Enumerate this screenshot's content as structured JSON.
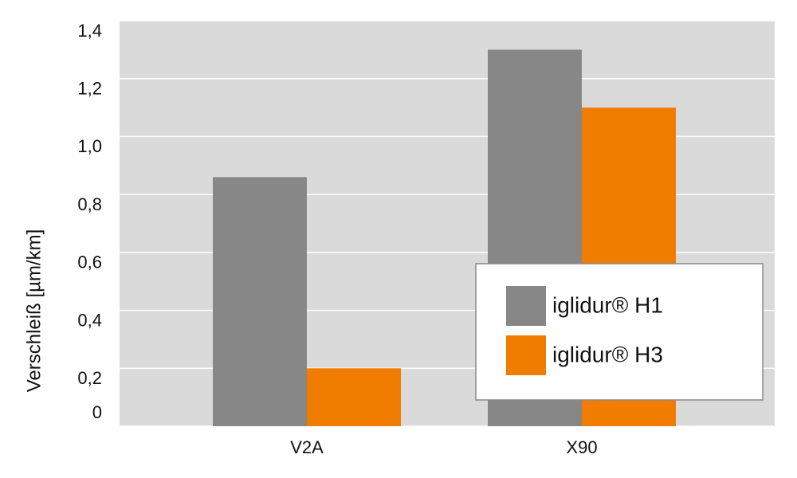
{
  "chart_data": {
    "type": "bar",
    "y_label": "Verschleiß [µm/km]",
    "categories": [
      "V2A",
      "X90"
    ],
    "series": [
      {
        "name": "iglidur® H1",
        "color": "#878787",
        "values": [
          0.86,
          1.3
        ]
      },
      {
        "name": "iglidur® H3",
        "color": "#f07d00",
        "values": [
          0.2,
          1.1
        ]
      }
    ],
    "ylim": [
      0,
      1.4
    ],
    "yticks": [
      0,
      {
        "value": 0.2,
        "label": "0,2"
      },
      {
        "value": 0.4,
        "label": "0,4"
      },
      {
        "value": 0.6,
        "label": "0,6"
      },
      {
        "value": 0.8,
        "label": "0,8"
      },
      {
        "value": 1.0,
        "label": "1,0"
      },
      {
        "value": 1.2,
        "label": "1,2"
      },
      {
        "value": 1.4,
        "label": "1,4"
      }
    ],
    "grid": true,
    "legend": "lower right"
  }
}
